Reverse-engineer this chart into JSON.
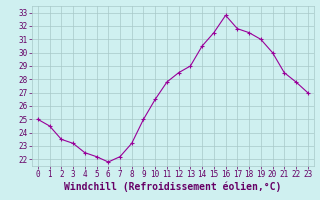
{
  "x": [
    0,
    1,
    2,
    3,
    4,
    5,
    6,
    7,
    8,
    9,
    10,
    11,
    12,
    13,
    14,
    15,
    16,
    17,
    18,
    19,
    20,
    21,
    22,
    23
  ],
  "y": [
    25.0,
    24.5,
    23.5,
    23.2,
    22.5,
    22.2,
    21.8,
    22.2,
    23.2,
    25.0,
    26.5,
    27.8,
    28.5,
    29.0,
    30.5,
    31.5,
    32.8,
    31.8,
    31.5,
    31.0,
    30.0,
    28.5,
    27.8,
    27.0
  ],
  "xlim": [
    -0.5,
    23.5
  ],
  "ylim": [
    21.5,
    33.5
  ],
  "yticks": [
    22,
    23,
    24,
    25,
    26,
    27,
    28,
    29,
    30,
    31,
    32,
    33
  ],
  "xticks": [
    0,
    1,
    2,
    3,
    4,
    5,
    6,
    7,
    8,
    9,
    10,
    11,
    12,
    13,
    14,
    15,
    16,
    17,
    18,
    19,
    20,
    21,
    22,
    23
  ],
  "xlabel": "Windchill (Refroidissement éolien,°C)",
  "line_color": "#990099",
  "marker": "+",
  "bg_color": "#cff0f0",
  "grid_color": "#a8c8c8",
  "tick_color": "#660066",
  "label_color": "#660066",
  "tick_fontsize": 5.5,
  "xlabel_fontsize": 7.0
}
